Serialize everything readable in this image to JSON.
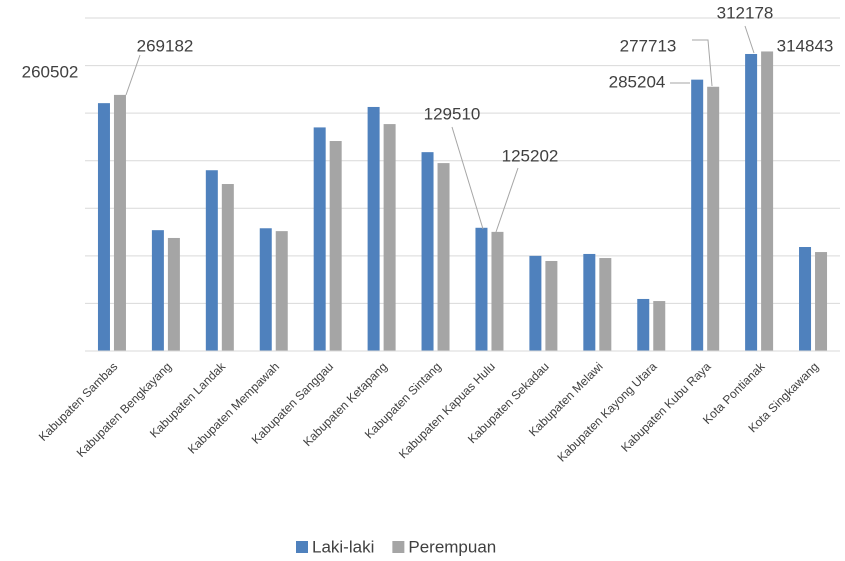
{
  "chart_data": {
    "type": "bar",
    "categories": [
      "Kabupaten Sambas",
      "Kabupaten Bengkayang",
      "Kabupaten  Landak",
      "Kabupaten Mempawah",
      "Kabupaten Sanggau",
      "Kabupaten Ketapang",
      "Kabupaten Sintang",
      "Kabupaten Kapuas Hulu",
      "Kabupaten Sekadau",
      "Kabupaten Melawi",
      "Kabupaten Kayong Utara",
      "Kabupaten Kubu Raya",
      "Kota Pontianak",
      "Kota  Singkawang"
    ],
    "series": [
      {
        "name": "Laki-laki",
        "color": "#4f81bd",
        "values": [
          260502,
          127000,
          190000,
          129000,
          235000,
          256500,
          209000,
          129510,
          100000,
          102000,
          54700,
          285204,
          312178,
          109300
        ],
        "labeled_indices": [
          0,
          7,
          11,
          12
        ]
      },
      {
        "name": "Perempuan",
        "color": "#a5a5a5",
        "values": [
          269182,
          118800,
          175500,
          126000,
          220700,
          238500,
          197500,
          125202,
          94600,
          97700,
          52500,
          277713,
          314843,
          104000
        ],
        "labeled_indices": [
          0,
          7,
          11,
          12
        ]
      }
    ],
    "ylim": [
      0,
      350000
    ],
    "yticks": [
      0,
      50000,
      100000,
      150000,
      200000,
      250000,
      300000,
      350000
    ],
    "grid": true,
    "legend": "bottom"
  }
}
